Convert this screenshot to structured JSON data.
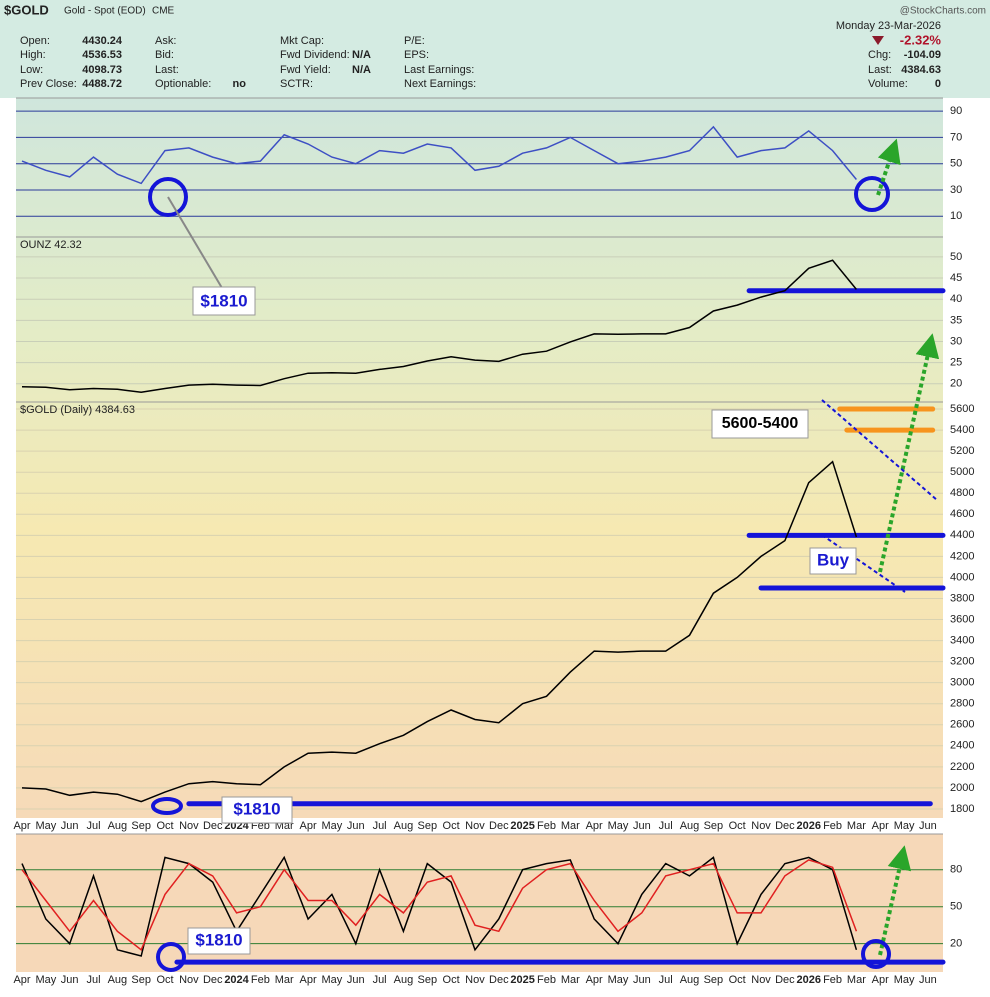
{
  "header": {
    "symbol": "$GOLD",
    "name": "Gold - Spot (EOD)",
    "exchange": "CME",
    "source": "@StockCharts.com",
    "date": "Monday  23-Mar-2026",
    "change_pct": "-2.32%",
    "columns": [
      [
        {
          "label": "Open:",
          "value": "4430.24"
        },
        {
          "label": "High:",
          "value": "4536.53"
        },
        {
          "label": "Low:",
          "value": "4098.73"
        },
        {
          "label": "Prev Close:",
          "value": "4488.72"
        }
      ],
      [
        {
          "label": "Ask:"
        },
        {
          "label": "Bid:"
        },
        {
          "label": "Last:"
        },
        {
          "label": "Optionable:",
          "value": "no"
        }
      ],
      [
        {
          "label": "Mkt Cap:"
        },
        {
          "label": "Fwd Dividend:",
          "value": "N/A"
        },
        {
          "label": "Fwd Yield:",
          "value": "N/A"
        },
        {
          "label": "SCTR:"
        }
      ],
      [
        {
          "label": "P/E:"
        },
        {
          "label": "EPS:"
        },
        {
          "label": "Last Earnings:"
        },
        {
          "label": "Next Earnings:"
        }
      ],
      [
        {
          "label": "Chg:",
          "value": "-104.09"
        },
        {
          "label": "Last:",
          "value": "4384.63"
        },
        {
          "label": "Volume:",
          "value": "0"
        }
      ]
    ]
  },
  "chart_data": [
    {
      "type": "line",
      "ylim": [
        -5,
        100
      ],
      "yticks": [
        10,
        30,
        50,
        70,
        90
      ],
      "grid_color": "#2b3a9a",
      "series": [
        {
          "color": "#3d4fc4",
          "values": [
            52,
            45,
            40,
            55,
            42,
            35,
            60,
            62,
            55,
            50,
            52,
            72,
            65,
            55,
            50,
            60,
            58,
            65,
            62,
            45,
            48,
            58,
            62,
            70,
            60,
            50,
            52,
            55,
            60,
            78,
            55,
            60,
            62,
            75,
            60,
            38,
            null,
            null,
            null
          ]
        }
      ],
      "annotations": [
        "$1810"
      ]
    },
    {
      "type": "line",
      "ylim": [
        15.7,
        54.7
      ],
      "yticks": [
        20,
        25,
        30,
        35,
        40,
        45,
        50
      ],
      "grid_color": "#c9cfb8",
      "series": [
        {
          "name": "OUNZ 42.32",
          "color": "#000000",
          "values": [
            19.3,
            19.2,
            18.6,
            18.9,
            18.7,
            18.0,
            18.9,
            19.7,
            19.9,
            19.7,
            19.6,
            21.2,
            22.5,
            22.6,
            22.5,
            23.4,
            24.1,
            25.4,
            26.4,
            25.6,
            25.3,
            27.0,
            27.7,
            29.9,
            31.8,
            31.7,
            31.8,
            31.8,
            33.3,
            37.2,
            38.6,
            40.5,
            42.0,
            47.3,
            49.2,
            42.32,
            null,
            null,
            null
          ]
        }
      ],
      "levels": [
        {
          "value": 42,
          "color": "#1414d8"
        }
      ]
    },
    {
      "type": "line",
      "ylim": [
        1714,
        5667
      ],
      "yticks": [
        1800,
        2000,
        2200,
        2400,
        2600,
        2800,
        3000,
        3200,
        3400,
        3600,
        3800,
        4000,
        4200,
        4400,
        4600,
        4800,
        5000,
        5200,
        5400,
        5600
      ],
      "grid_color": "#d9d2b0",
      "categories": [
        "Apr",
        "May",
        "Jun",
        "Jul",
        "Aug",
        "Sep",
        "Oct",
        "Nov",
        "Dec",
        "2024",
        "Feb",
        "Mar",
        "Apr",
        "May",
        "Jun",
        "Jul",
        "Aug",
        "Sep",
        "Oct",
        "Nov",
        "Dec",
        "2025",
        "Feb",
        "Mar",
        "Apr",
        "May",
        "Jun",
        "Jul",
        "Aug",
        "Sep",
        "Oct",
        "Nov",
        "Dec",
        "2026",
        "Feb",
        "Mar",
        "Apr",
        "May",
        "Jun"
      ],
      "series": [
        {
          "name": "$GOLD (Daily) 4384.63",
          "color": "#000000",
          "values": [
            2000,
            1990,
            1930,
            1960,
            1940,
            1870,
            1960,
            2040,
            2060,
            2040,
            2030,
            2200,
            2330,
            2340,
            2330,
            2420,
            2500,
            2630,
            2740,
            2650,
            2620,
            2800,
            2870,
            3100,
            3300,
            3290,
            3300,
            3300,
            3450,
            3850,
            4000,
            4200,
            4350,
            4900,
            5100,
            4384.63,
            null,
            null,
            null
          ]
        }
      ],
      "levels": [
        {
          "value": 5600,
          "color": "#f7941d"
        },
        {
          "value": 5400,
          "color": "#f7941d"
        },
        {
          "value": 4400,
          "color": "#1414d8"
        },
        {
          "value": 3900,
          "color": "#1414d8"
        },
        {
          "value": 1850,
          "color": "#1414d8"
        }
      ],
      "annotations": [
        "5600-5400",
        "Buy",
        "$1810"
      ]
    },
    {
      "type": "line",
      "ylim": [
        -3,
        109
      ],
      "yticks": [
        20,
        50,
        80
      ],
      "grid_color": "#2e7d32",
      "categories": [
        "Apr",
        "May",
        "Jun",
        "Jul",
        "Aug",
        "Sep",
        "Oct",
        "Nov",
        "Dec",
        "2024",
        "Feb",
        "Mar",
        "Apr",
        "May",
        "Jun",
        "Jul",
        "Aug",
        "Sep",
        "Oct",
        "Nov",
        "Dec",
        "2025",
        "Feb",
        "Mar",
        "Apr",
        "May",
        "Jun",
        "Jul",
        "Aug",
        "Sep",
        "Oct",
        "Nov",
        "Dec",
        "2026",
        "Feb",
        "Mar",
        "Apr",
        "May",
        "Jun"
      ],
      "series": [
        {
          "color": "#000000",
          "values": [
            85,
            40,
            20,
            75,
            15,
            10,
            90,
            85,
            70,
            30,
            60,
            90,
            40,
            60,
            20,
            80,
            30,
            85,
            70,
            15,
            40,
            80,
            85,
            88,
            40,
            20,
            60,
            85,
            75,
            90,
            20,
            60,
            85,
            90,
            80,
            15,
            null,
            null,
            null
          ]
        },
        {
          "color": "#e02020",
          "values": [
            80,
            55,
            30,
            55,
            30,
            15,
            60,
            85,
            75,
            45,
            50,
            80,
            55,
            55,
            35,
            60,
            45,
            70,
            75,
            35,
            30,
            65,
            80,
            85,
            55,
            30,
            45,
            75,
            80,
            85,
            45,
            45,
            75,
            88,
            82,
            30,
            null,
            null,
            null
          ]
        }
      ],
      "levels": [
        {
          "value": 5,
          "color": "#1414d8"
        }
      ],
      "annotations": [
        "$1810"
      ]
    }
  ]
}
